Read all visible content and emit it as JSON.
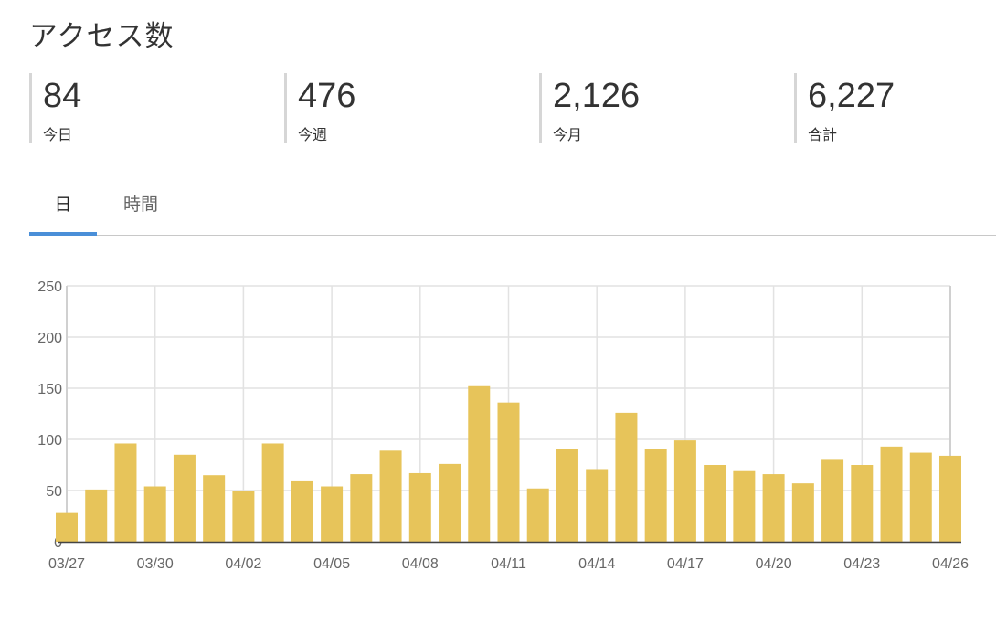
{
  "header": {
    "title": "アクセス数"
  },
  "stats": [
    {
      "value": "84",
      "label": "今日"
    },
    {
      "value": "476",
      "label": "今週"
    },
    {
      "value": "2,126",
      "label": "今月"
    },
    {
      "value": "6,227",
      "label": "合計"
    }
  ],
  "tabs": [
    {
      "label": "日",
      "active": true
    },
    {
      "label": "時間",
      "active": false
    }
  ],
  "colors": {
    "bar": "#e7c45a",
    "tab_accent": "#4a8fd8",
    "grid": "#e2e2e2"
  },
  "chart_data": {
    "type": "bar",
    "categories": [
      "03/27",
      "03/28",
      "03/29",
      "03/30",
      "03/31",
      "04/01",
      "04/02",
      "04/03",
      "04/04",
      "04/05",
      "04/06",
      "04/07",
      "04/08",
      "04/09",
      "04/10",
      "04/11",
      "04/12",
      "04/13",
      "04/14",
      "04/15",
      "04/16",
      "04/17",
      "04/18",
      "04/19",
      "04/20",
      "04/21",
      "04/22",
      "04/23",
      "04/24",
      "04/25",
      "04/26"
    ],
    "values": [
      28,
      51,
      96,
      54,
      85,
      65,
      50,
      96,
      59,
      54,
      66,
      89,
      67,
      76,
      152,
      136,
      52,
      91,
      71,
      126,
      91,
      99,
      75,
      69,
      66,
      57,
      80,
      75,
      93,
      87,
      84
    ],
    "tick_labels": [
      "03/27",
      "03/30",
      "04/02",
      "04/05",
      "04/08",
      "04/11",
      "04/14",
      "04/17",
      "04/20",
      "04/23",
      "04/26"
    ],
    "tick_every": 3,
    "y_ticks": [
      0,
      50,
      100,
      150,
      200,
      250
    ],
    "ylim": [
      0,
      250
    ],
    "grid": true,
    "title": "",
    "xlabel": "",
    "ylabel": ""
  }
}
